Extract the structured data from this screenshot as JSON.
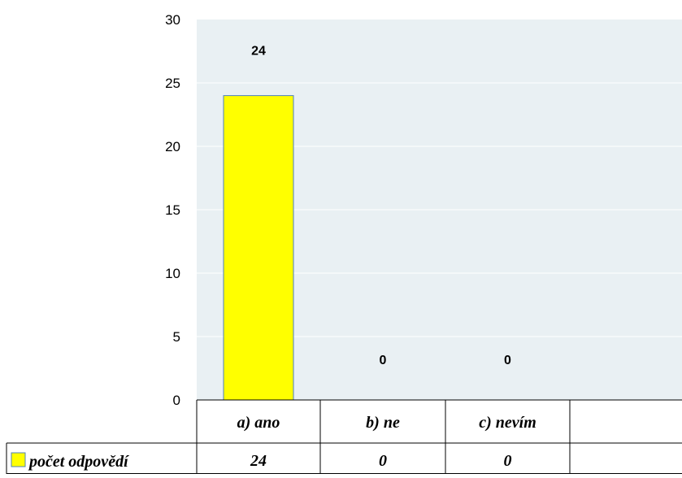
{
  "chart_data": {
    "type": "bar",
    "categories": [
      "a) ano",
      "b) ne",
      "c) nevím",
      ""
    ],
    "series": [
      {
        "name": "počet odpovědí",
        "values": [
          24,
          0,
          0,
          null
        ],
        "table_values": [
          "24",
          "0",
          "0",
          ""
        ]
      }
    ],
    "ylim": [
      0,
      30
    ],
    "yticks": [
      0,
      5,
      10,
      15,
      20,
      25,
      30
    ],
    "data_labels": [
      "24",
      "0",
      "0"
    ],
    "grid": true,
    "data_table": true,
    "colors": {
      "bar_fill": "#ffff00",
      "bar_stroke": "#4f81bd",
      "plot_bg": "#e9f0f3",
      "gridline": "#ffffff",
      "table_line": "#000000"
    }
  }
}
